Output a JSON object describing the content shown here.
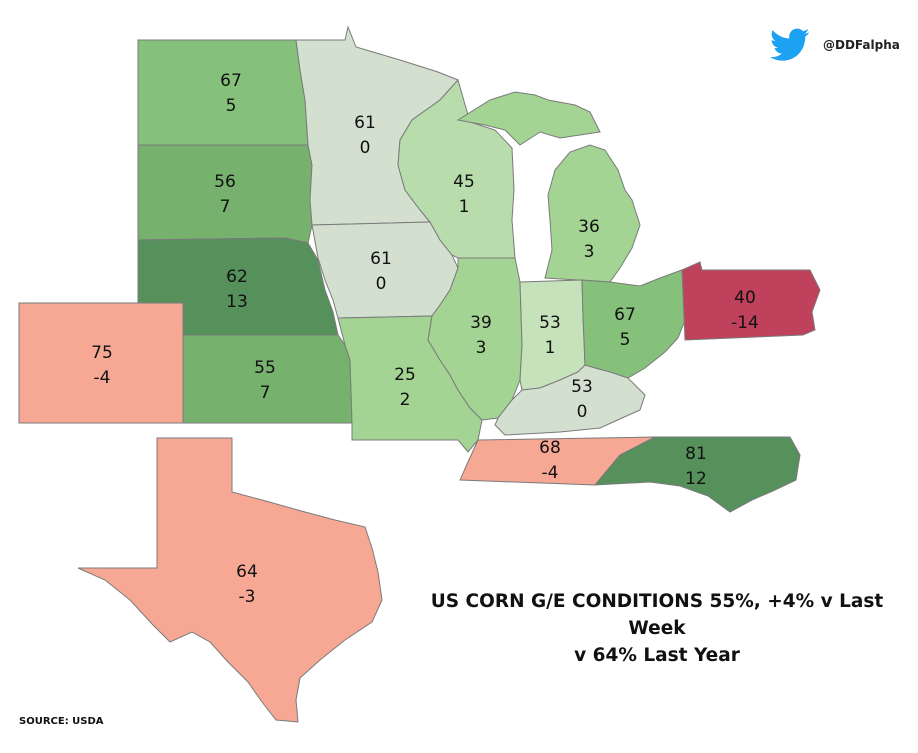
{
  "title": {
    "line1": "US CORN G/E CONDITIONS 55%, +4% v Last Week",
    "line2": "v 64% Last Year"
  },
  "source": "SOURCE: USDA",
  "handle": "@DDFalpha",
  "icons": {
    "brand": "twitter-bird-icon"
  },
  "colors": {
    "twitter": "#1DA1F2"
  },
  "states": {
    "nd": {
      "ge": "67",
      "change": "5",
      "color": "#86c17c"
    },
    "sd": {
      "ge": "56",
      "change": "7",
      "color": "#76b16d"
    },
    "ne": {
      "ge": "62",
      "change": "13",
      "color": "#56915c"
    },
    "ks": {
      "ge": "55",
      "change": "7",
      "color": "#76b16d"
    },
    "co": {
      "ge": "75",
      "change": "-4",
      "color": "#f7a895"
    },
    "tx": {
      "ge": "64",
      "change": "-3",
      "color": "#f7a895"
    },
    "mn": {
      "ge": "61",
      "change": "0",
      "color": "#d3e0cf"
    },
    "ia": {
      "ge": "61",
      "change": "0",
      "color": "#d3e0cf"
    },
    "mo": {
      "ge": "25",
      "change": "2",
      "color": "#a3d494"
    },
    "wi": {
      "ge": "45",
      "change": "1",
      "color": "#b8dcab"
    },
    "il": {
      "ge": "39",
      "change": "3",
      "color": "#a3d494"
    },
    "mi": {
      "ge": "36",
      "change": "3",
      "color": "#a3d494"
    },
    "in": {
      "ge": "53",
      "change": "1",
      "color": "#c5e2ba"
    },
    "oh": {
      "ge": "67",
      "change": "5",
      "color": "#86c17c"
    },
    "ky": {
      "ge": "53",
      "change": "0",
      "color": "#d3e0cf"
    },
    "tn": {
      "ge": "68",
      "change": "-4",
      "color": "#f7a895"
    },
    "nc": {
      "ge": "81",
      "change": "12",
      "color": "#56915c"
    },
    "pa": {
      "ge": "40",
      "change": "-14",
      "color": "#c0415c"
    }
  }
}
